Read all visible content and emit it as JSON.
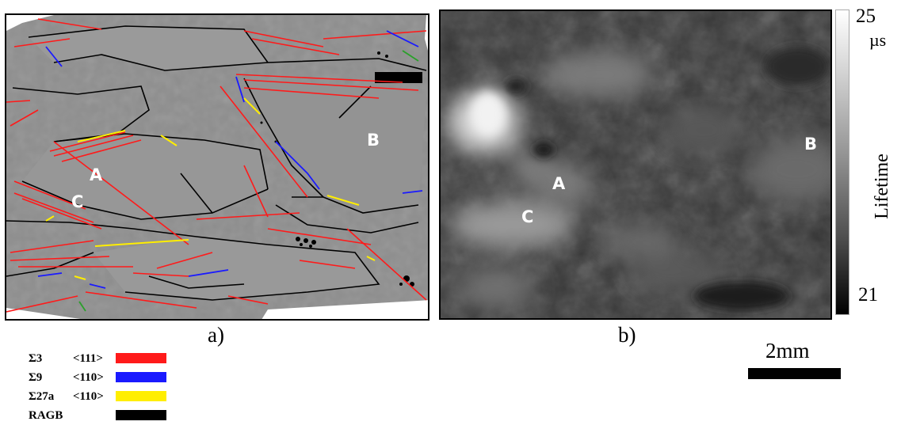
{
  "panel_a": {
    "caption": "a)",
    "points": [
      "A",
      "B",
      "C"
    ],
    "colors": {
      "sigma3": "#ff1a1a",
      "sigma9": "#1a1aff",
      "sigma27a": "#ffee00",
      "ragb": "#000000"
    }
  },
  "panel_b": {
    "caption": "b)",
    "points": [
      "A",
      "B",
      "C"
    ]
  },
  "colorbar": {
    "max": "25",
    "unit": "µs",
    "min": "21",
    "label": "Lifetime"
  },
  "scale_bar": {
    "label": "2mm"
  },
  "legend": [
    {
      "sym": "Σ3",
      "dir": "<111>",
      "color": "#ff1a1a"
    },
    {
      "sym": "Σ9",
      "dir": "<110>",
      "color": "#1a1aff"
    },
    {
      "sym": "Σ27a",
      "dir": "<110>",
      "color": "#ffee00"
    },
    {
      "sym": "RAGB",
      "dir": "",
      "color": "#000000"
    }
  ]
}
